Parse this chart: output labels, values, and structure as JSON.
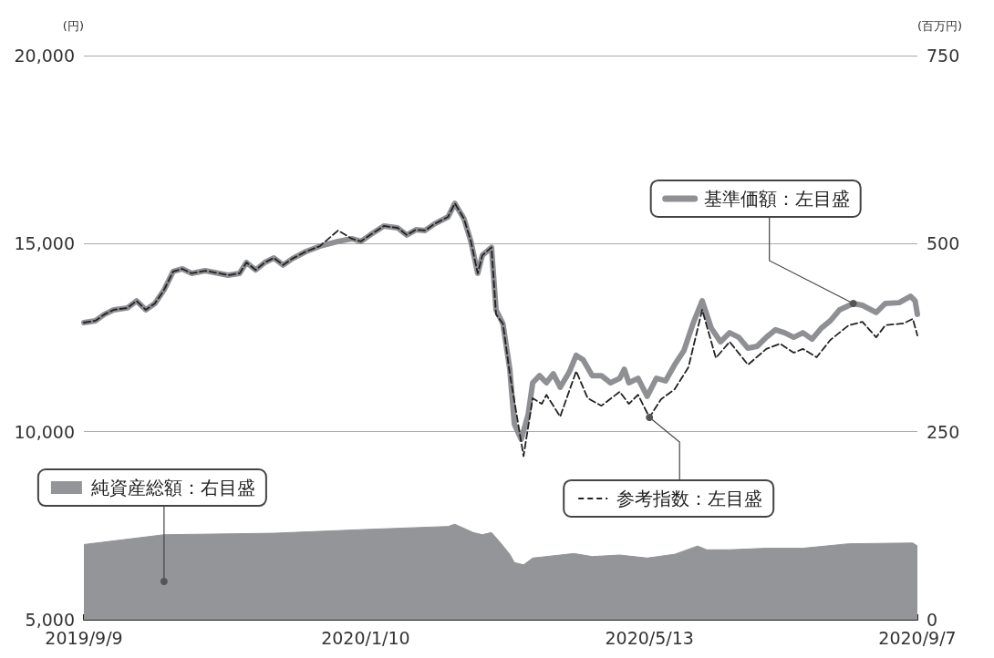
{
  "chart_data": {
    "type": "line",
    "ylabel": "(円)",
    "y2label": "(百万円)",
    "ylim": [
      5000,
      20000
    ],
    "yticks": [
      {
        "value": 5000,
        "label": "5,000"
      },
      {
        "value": 10000,
        "label": "10,000"
      },
      {
        "value": 15000,
        "label": "15,000"
      },
      {
        "value": 20000,
        "label": "20,000"
      }
    ],
    "y2lim": [
      0,
      750
    ],
    "y2ticks": [
      0,
      250,
      500,
      750
    ],
    "xlim": [
      "2019-09-09",
      "2020-09-07"
    ],
    "xticks": [
      {
        "value": "2019-09-09",
        "label": "2019/9/9"
      },
      {
        "value": "2020-01-10",
        "label": "2020/1/10"
      },
      {
        "value": "2020-05-13",
        "label": "2020/5/13"
      },
      {
        "value": "2020-09-07",
        "label": "2020/9/7"
      }
    ],
    "grid": "y",
    "legend": "bottom left",
    "marker": "none",
    "series": [
      {
        "name": "純資産総額：右目盛",
        "type": "area",
        "axis": "y2",
        "color": "#939598",
        "x": [
          "2019-09-09",
          "2019-10-14",
          "2019-12-01",
          "2020-01-10",
          "2020-02-15",
          "2020-02-18",
          "2020-02-26",
          "2020-03-01",
          "2020-03-05",
          "2020-03-09",
          "2020-03-13",
          "2020-03-15",
          "2020-03-19",
          "2020-03-23",
          "2020-03-29",
          "2020-04-10",
          "2020-04-18",
          "2020-04-30",
          "2020-05-12",
          "2020-05-24",
          "2020-06-03",
          "2020-06-07",
          "2020-06-17",
          "2020-07-03",
          "2020-07-19",
          "2020-08-08",
          "2020-09-05",
          "2020-09-07"
        ],
        "values": [
          100,
          113,
          115,
          120,
          124,
          127,
          116,
          113,
          116,
          102,
          87,
          76,
          73,
          82,
          84,
          88,
          84,
          86,
          82,
          87,
          98,
          93,
          93,
          95,
          95,
          101,
          102,
          98
        ]
      },
      {
        "name": "基準価額：左目盛",
        "line_style": "solid",
        "color": "#8f9094",
        "x": [
          "2019-09-09",
          "2019-09-14",
          "2019-09-18",
          "2019-09-22",
          "2019-09-28",
          "2019-10-02",
          "2019-10-06",
          "2019-10-10",
          "2019-10-14",
          "2019-10-18",
          "2019-10-22",
          "2019-10-26",
          "2019-11-01",
          "2019-11-07",
          "2019-11-11",
          "2019-11-16",
          "2019-11-19",
          "2019-11-23",
          "2019-11-27",
          "2019-12-01",
          "2019-12-05",
          "2019-12-09",
          "2019-12-15",
          "2019-12-21",
          "2019-12-29",
          "2020-01-04",
          "2020-01-08",
          "2020-01-12",
          "2020-01-18",
          "2020-01-24",
          "2020-01-28",
          "2020-02-01",
          "2020-02-05",
          "2020-02-09",
          "2020-02-15",
          "2020-02-18",
          "2020-02-22",
          "2020-02-25",
          "2020-02-28",
          "2020-03-01",
          "2020-03-05",
          "2020-03-07",
          "2020-03-10",
          "2020-03-13",
          "2020-03-15",
          "2020-03-18",
          "2020-03-21",
          "2020-03-23",
          "2020-03-26",
          "2020-03-29",
          "2020-04-01",
          "2020-04-04",
          "2020-04-08",
          "2020-04-11",
          "2020-04-14",
          "2020-04-18",
          "2020-04-22",
          "2020-04-26",
          "2020-04-30",
          "2020-05-02",
          "2020-05-04",
          "2020-05-08",
          "2020-05-12",
          "2020-05-16",
          "2020-05-20",
          "2020-05-24",
          "2020-05-28",
          "2020-06-01",
          "2020-06-05",
          "2020-06-09",
          "2020-06-13",
          "2020-06-17",
          "2020-06-21",
          "2020-06-25",
          "2020-06-29",
          "2020-07-03",
          "2020-07-07",
          "2020-07-11",
          "2020-07-15",
          "2020-07-19",
          "2020-07-23",
          "2020-07-27",
          "2020-07-31",
          "2020-08-04",
          "2020-08-10",
          "2020-08-14",
          "2020-08-20",
          "2020-08-24",
          "2020-08-30",
          "2020-09-04",
          "2020-09-06",
          "2020-09-07"
        ],
        "values": [
          12900,
          12950,
          13120,
          13240,
          13290,
          13480,
          13240,
          13410,
          13770,
          14260,
          14330,
          14210,
          14280,
          14210,
          14160,
          14210,
          14500,
          14300,
          14500,
          14620,
          14430,
          14600,
          14790,
          14930,
          15060,
          15130,
          15060,
          15230,
          15470,
          15420,
          15230,
          15370,
          15350,
          15520,
          15710,
          16070,
          15660,
          15060,
          14210,
          14690,
          14900,
          13240,
          12870,
          11660,
          10200,
          9800,
          10450,
          11300,
          11490,
          11300,
          11540,
          11180,
          11590,
          12030,
          11910,
          11490,
          11490,
          11300,
          11420,
          11660,
          11300,
          11420,
          10940,
          11420,
          11350,
          11780,
          12150,
          12870,
          13480,
          12750,
          12390,
          12630,
          12510,
          12220,
          12270,
          12510,
          12710,
          12630,
          12510,
          12630,
          12460,
          12750,
          12950,
          13240,
          13410,
          13360,
          13170,
          13410,
          13430,
          13600,
          13480,
          13120
        ]
      },
      {
        "name": "参考指数：左目盛",
        "line_style": "dashed",
        "color": "#222222",
        "x": [
          "2019-09-09",
          "2019-09-14",
          "2019-09-18",
          "2019-09-22",
          "2019-09-28",
          "2019-10-02",
          "2019-10-06",
          "2019-10-10",
          "2019-10-14",
          "2019-10-18",
          "2019-10-22",
          "2019-10-26",
          "2019-11-01",
          "2019-11-07",
          "2019-11-11",
          "2019-11-16",
          "2019-11-19",
          "2019-11-23",
          "2019-11-27",
          "2019-12-01",
          "2019-12-05",
          "2019-12-09",
          "2019-12-15",
          "2019-12-21",
          "2019-12-29",
          "2020-01-04",
          "2020-01-08",
          "2020-01-12",
          "2020-01-18",
          "2020-01-24",
          "2020-01-28",
          "2020-02-01",
          "2020-02-05",
          "2020-02-09",
          "2020-02-15",
          "2020-02-18",
          "2020-02-22",
          "2020-02-25",
          "2020-02-28",
          "2020-03-01",
          "2020-03-05",
          "2020-03-07",
          "2020-03-10",
          "2020-03-13",
          "2020-03-19",
          "2020-03-23",
          "2020-03-27",
          "2020-03-29",
          "2020-04-04",
          "2020-04-11",
          "2020-04-16",
          "2020-04-22",
          "2020-04-30",
          "2020-05-04",
          "2020-05-08",
          "2020-05-13",
          "2020-05-18",
          "2020-05-24",
          "2020-05-30",
          "2020-06-05",
          "2020-06-11",
          "2020-06-17",
          "2020-06-25",
          "2020-07-03",
          "2020-07-09",
          "2020-07-15",
          "2020-07-19",
          "2020-07-25",
          "2020-07-31",
          "2020-08-08",
          "2020-08-14",
          "2020-08-20",
          "2020-08-24",
          "2020-09-01",
          "2020-09-05",
          "2020-09-07"
        ],
        "values": [
          12900,
          12950,
          13120,
          13240,
          13290,
          13480,
          13240,
          13410,
          13770,
          14260,
          14330,
          14210,
          14280,
          14210,
          14160,
          14210,
          14500,
          14300,
          14500,
          14620,
          14430,
          14600,
          14790,
          14930,
          15350,
          15130,
          15060,
          15230,
          15470,
          15420,
          15230,
          15370,
          15350,
          15520,
          15710,
          16070,
          15660,
          15060,
          14210,
          14690,
          14900,
          13120,
          12870,
          11540,
          9350,
          10890,
          10740,
          10980,
          10400,
          11610,
          10890,
          10690,
          11060,
          10740,
          10980,
          10380,
          10860,
          11130,
          11710,
          13240,
          11960,
          12390,
          11780,
          12200,
          12340,
          12100,
          12200,
          11980,
          12440,
          12830,
          12920,
          12510,
          12830,
          12880,
          13000,
          12560
        ]
      }
    ]
  }
}
